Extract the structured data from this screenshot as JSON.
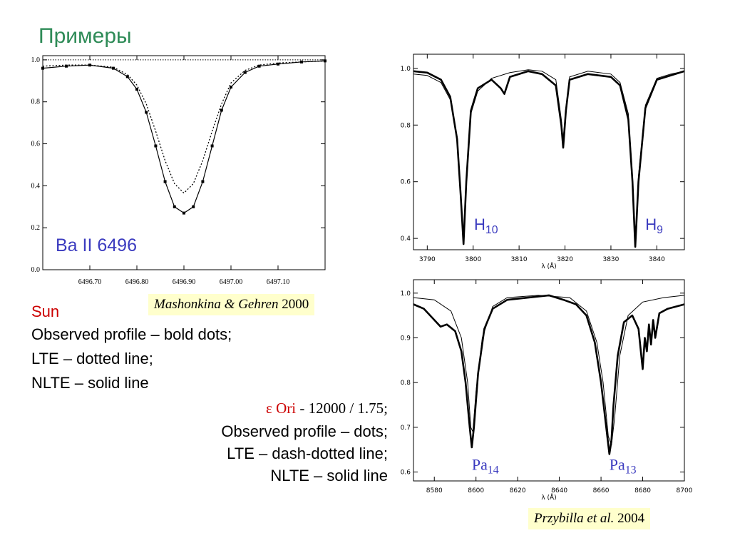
{
  "slide_title": "Примеры",
  "legend_left": {
    "star": "Sun",
    "lines": [
      "Observed profile – bold dots;",
      "LTE – dotted line;",
      "NLTE – solid line"
    ]
  },
  "legend_right": {
    "star": "ε Ori",
    "params": " - 12000 / 1.75;",
    "lines": [
      "Observed profile – dots;",
      "LTE – dash-dotted line;",
      "NLTE – solid line"
    ]
  },
  "citations": {
    "left_authors": "Mashonkina & Gehren",
    "left_year": " 2000",
    "right_authors": "Przybilla et al.",
    "right_year": " 2004"
  },
  "colors": {
    "title": "#2e8b57",
    "label": "#3b3bbf",
    "star": "#cc0000",
    "cite_bg": "#ffffcc"
  },
  "chart_data": [
    {
      "type": "line",
      "annotation": "Ba II 6496",
      "xlim": [
        6496.6,
        6497.2
      ],
      "ylim": [
        0.0,
        1.02
      ],
      "x_ticks": [
        "6496.70",
        "6496.80",
        "6496.90",
        "6497.00",
        "6497.10"
      ],
      "y_ticks": [
        "0.0",
        "0.2",
        "0.4",
        "0.6",
        "0.8",
        "1.0"
      ],
      "series": [
        {
          "style": "bold-dots",
          "x": [
            6496.6,
            6496.65,
            6496.7,
            6496.75,
            6496.78,
            6496.8,
            6496.82,
            6496.84,
            6496.86,
            6496.88,
            6496.9,
            6496.92,
            6496.94,
            6496.96,
            6496.98,
            6497.0,
            6497.03,
            6497.06,
            6497.1,
            6497.15,
            6497.2
          ],
          "y": [
            0.96,
            0.97,
            0.975,
            0.96,
            0.92,
            0.86,
            0.75,
            0.59,
            0.42,
            0.3,
            0.27,
            0.3,
            0.42,
            0.59,
            0.76,
            0.87,
            0.94,
            0.97,
            0.98,
            0.99,
            0.995
          ]
        },
        {
          "style": "solid",
          "x": [
            6496.6,
            6496.65,
            6496.7,
            6496.75,
            6496.78,
            6496.8,
            6496.82,
            6496.84,
            6496.86,
            6496.88,
            6496.9,
            6496.92,
            6496.94,
            6496.96,
            6496.98,
            6497.0,
            6497.03,
            6497.06,
            6497.1,
            6497.15,
            6497.2
          ],
          "y": [
            0.96,
            0.97,
            0.975,
            0.96,
            0.92,
            0.86,
            0.75,
            0.59,
            0.42,
            0.3,
            0.27,
            0.3,
            0.42,
            0.59,
            0.76,
            0.87,
            0.94,
            0.97,
            0.98,
            0.99,
            0.995
          ]
        },
        {
          "style": "dotted",
          "x": [
            6496.6,
            6496.65,
            6496.7,
            6496.75,
            6496.78,
            6496.8,
            6496.82,
            6496.84,
            6496.86,
            6496.88,
            6496.9,
            6496.92,
            6496.94,
            6496.96,
            6496.98,
            6497.0,
            6497.03,
            6497.06,
            6497.1,
            6497.15,
            6497.2
          ],
          "y": [
            0.97,
            0.975,
            0.975,
            0.965,
            0.93,
            0.88,
            0.79,
            0.66,
            0.52,
            0.41,
            0.365,
            0.41,
            0.52,
            0.66,
            0.79,
            0.89,
            0.95,
            0.975,
            0.985,
            0.99,
            0.995
          ]
        },
        {
          "style": "reference",
          "x": [
            6496.6,
            6497.2
          ],
          "y": [
            1.0,
            1.0
          ]
        }
      ]
    },
    {
      "type": "line",
      "xlabel": "λ (Å)",
      "xlim": [
        3787,
        3846
      ],
      "ylim": [
        0.36,
        1.05
      ],
      "x_ticks": [
        "3790",
        "3800",
        "3810",
        "3820",
        "3830",
        "3840"
      ],
      "y_ticks": [
        "0.4",
        "0.6",
        "0.8",
        "1.0"
      ],
      "line_labels": [
        {
          "text": "H",
          "sub": "10",
          "x": 3800.2,
          "y": 0.43
        },
        {
          "text": "H",
          "sub": "9",
          "x": 3837.5,
          "y": 0.43
        }
      ],
      "series": [
        {
          "style": "observed",
          "x": [
            3787,
            3790,
            3793,
            3795,
            3796.5,
            3797.3,
            3797.9,
            3798.5,
            3799.5,
            3801,
            3804,
            3806,
            3806.8,
            3808,
            3812,
            3815,
            3818,
            3819.2,
            3819.6,
            3820.2,
            3821,
            3825,
            3830,
            3832,
            3833.8,
            3834.7,
            3835.3,
            3836,
            3837.5,
            3840,
            3843,
            3846
          ],
          "y": [
            0.99,
            0.985,
            0.96,
            0.9,
            0.75,
            0.55,
            0.38,
            0.6,
            0.85,
            0.93,
            0.96,
            0.93,
            0.91,
            0.97,
            0.99,
            0.98,
            0.94,
            0.8,
            0.72,
            0.85,
            0.96,
            0.98,
            0.97,
            0.94,
            0.82,
            0.6,
            0.37,
            0.6,
            0.86,
            0.96,
            0.975,
            0.99
          ]
        },
        {
          "style": "model",
          "x": [
            3787,
            3790,
            3793,
            3795,
            3796.5,
            3797.3,
            3797.9,
            3798.5,
            3799.5,
            3801,
            3804,
            3808,
            3812,
            3815,
            3818,
            3819.2,
            3819.6,
            3820.2,
            3821,
            3825,
            3830,
            3832,
            3833.8,
            3834.7,
            3835.3,
            3836,
            3837.5,
            3840,
            3843,
            3846
          ],
          "y": [
            0.98,
            0.975,
            0.95,
            0.89,
            0.76,
            0.57,
            0.4,
            0.6,
            0.84,
            0.92,
            0.965,
            0.985,
            0.995,
            0.99,
            0.96,
            0.82,
            0.75,
            0.86,
            0.97,
            0.99,
            0.98,
            0.95,
            0.84,
            0.62,
            0.39,
            0.62,
            0.87,
            0.965,
            0.98,
            0.99
          ]
        }
      ]
    },
    {
      "type": "line",
      "xlabel": "λ (Å)",
      "xlim": [
        8570,
        8700
      ],
      "ylim": [
        0.58,
        1.03
      ],
      "x_ticks": [
        "8580",
        "8600",
        "8620",
        "8640",
        "8660",
        "8680",
        "8700"
      ],
      "y_ticks": [
        "0.6",
        "0.7",
        "0.8",
        "0.9",
        "1.0"
      ],
      "line_labels": [
        {
          "text": "Pa",
          "sub": "14",
          "x": 8598,
          "y": 0.605
        },
        {
          "text": "Pa",
          "sub": "13",
          "x": 8664,
          "y": 0.605
        }
      ],
      "series": [
        {
          "style": "observed",
          "x": [
            8570,
            8575,
            8580,
            8583,
            8586,
            8590,
            8593,
            8595,
            8597,
            8598,
            8599,
            8601,
            8604,
            8608,
            8615,
            8625,
            8635,
            8642,
            8648,
            8653,
            8657,
            8660,
            8662,
            8664,
            8665,
            8666,
            8668,
            8671,
            8675,
            8678,
            8680,
            8681,
            8682,
            8683,
            8684,
            8685,
            8686,
            8688,
            8692,
            8700
          ],
          "y": [
            0.975,
            0.965,
            0.94,
            0.925,
            0.93,
            0.915,
            0.87,
            0.8,
            0.7,
            0.655,
            0.7,
            0.82,
            0.92,
            0.965,
            0.985,
            0.99,
            0.995,
            0.985,
            0.975,
            0.95,
            0.89,
            0.8,
            0.72,
            0.64,
            0.67,
            0.75,
            0.86,
            0.935,
            0.95,
            0.92,
            0.83,
            0.9,
            0.87,
            0.93,
            0.885,
            0.94,
            0.9,
            0.955,
            0.965,
            0.975
          ]
        },
        {
          "style": "model",
          "x": [
            8570,
            8580,
            8588,
            8593,
            8596,
            8597.5,
            8598.5,
            8600,
            8603,
            8608,
            8615,
            8630,
            8645,
            8653,
            8658,
            8661,
            8663.5,
            8665,
            8666.5,
            8669,
            8673,
            8680,
            8690,
            8700
          ],
          "y": [
            0.99,
            0.985,
            0.96,
            0.9,
            0.8,
            0.7,
            0.69,
            0.78,
            0.9,
            0.97,
            0.99,
            0.995,
            0.99,
            0.96,
            0.89,
            0.8,
            0.68,
            0.66,
            0.72,
            0.86,
            0.95,
            0.98,
            0.99,
            0.995
          ]
        }
      ]
    }
  ]
}
